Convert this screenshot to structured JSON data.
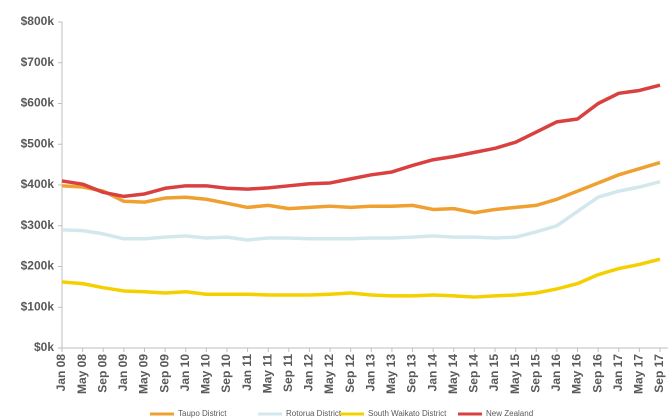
{
  "chart_data": {
    "type": "line",
    "categories": [
      "Jan 08",
      "May 08",
      "Sep 08",
      "Jan 09",
      "May 09",
      "Sep 09",
      "Jan 10",
      "May 10",
      "Sep 10",
      "Jan 11",
      "May 11",
      "Sep 11",
      "Jan 12",
      "May 12",
      "Sep 12",
      "Jan 13",
      "May 13",
      "Sep 13",
      "Jan 14",
      "May 14",
      "Sep 14",
      "Jan 15",
      "May 15",
      "Sep 15",
      "Jan 16",
      "May 16",
      "Sep 16",
      "Jan 17",
      "May 17",
      "Sep 17"
    ],
    "series": [
      {
        "name": "Taupo District",
        "color": "#f0a030",
        "values": [
          398000,
          395000,
          385000,
          360000,
          358000,
          368000,
          370000,
          365000,
          355000,
          345000,
          350000,
          342000,
          345000,
          348000,
          345000,
          348000,
          348000,
          350000,
          340000,
          342000,
          332000,
          340000,
          345000,
          350000,
          365000,
          385000,
          405000,
          425000,
          440000,
          455000
        ]
      },
      {
        "name": "Rotorua District",
        "color": "#d3e8ec",
        "values": [
          290000,
          288000,
          280000,
          268000,
          268000,
          272000,
          275000,
          270000,
          272000,
          265000,
          270000,
          270000,
          268000,
          268000,
          268000,
          270000,
          270000,
          272000,
          275000,
          272000,
          272000,
          270000,
          272000,
          285000,
          300000,
          335000,
          370000,
          385000,
          395000,
          408000
        ]
      },
      {
        "name": "South Waikato District",
        "color": "#f5d000",
        "values": [
          162000,
          158000,
          148000,
          140000,
          138000,
          135000,
          138000,
          132000,
          132000,
          132000,
          130000,
          130000,
          130000,
          132000,
          135000,
          130000,
          128000,
          128000,
          130000,
          128000,
          125000,
          128000,
          130000,
          135000,
          145000,
          158000,
          180000,
          195000,
          205000,
          218000
        ]
      },
      {
        "name": "New Zealand",
        "color": "#d94040",
        "values": [
          410000,
          402000,
          382000,
          372000,
          378000,
          392000,
          398000,
          398000,
          392000,
          390000,
          393000,
          398000,
          403000,
          405000,
          415000,
          425000,
          432000,
          448000,
          462000,
          470000,
          480000,
          490000,
          505000,
          530000,
          555000,
          562000,
          600000,
          625000,
          632000,
          645000
        ]
      }
    ],
    "ylim": [
      0,
      800000
    ],
    "yticks": [
      {
        "value": 0,
        "label": "$0k"
      },
      {
        "value": 100000,
        "label": "$100k"
      },
      {
        "value": 200000,
        "label": "$200k"
      },
      {
        "value": 300000,
        "label": "$300k"
      },
      {
        "value": 400000,
        "label": "$400k"
      },
      {
        "value": 500000,
        "label": "$500k"
      },
      {
        "value": 600000,
        "label": "$600k"
      },
      {
        "value": 700000,
        "label": "$700k"
      },
      {
        "value": 800000,
        "label": "$800k"
      }
    ],
    "grid": false,
    "legend": "bottom"
  }
}
